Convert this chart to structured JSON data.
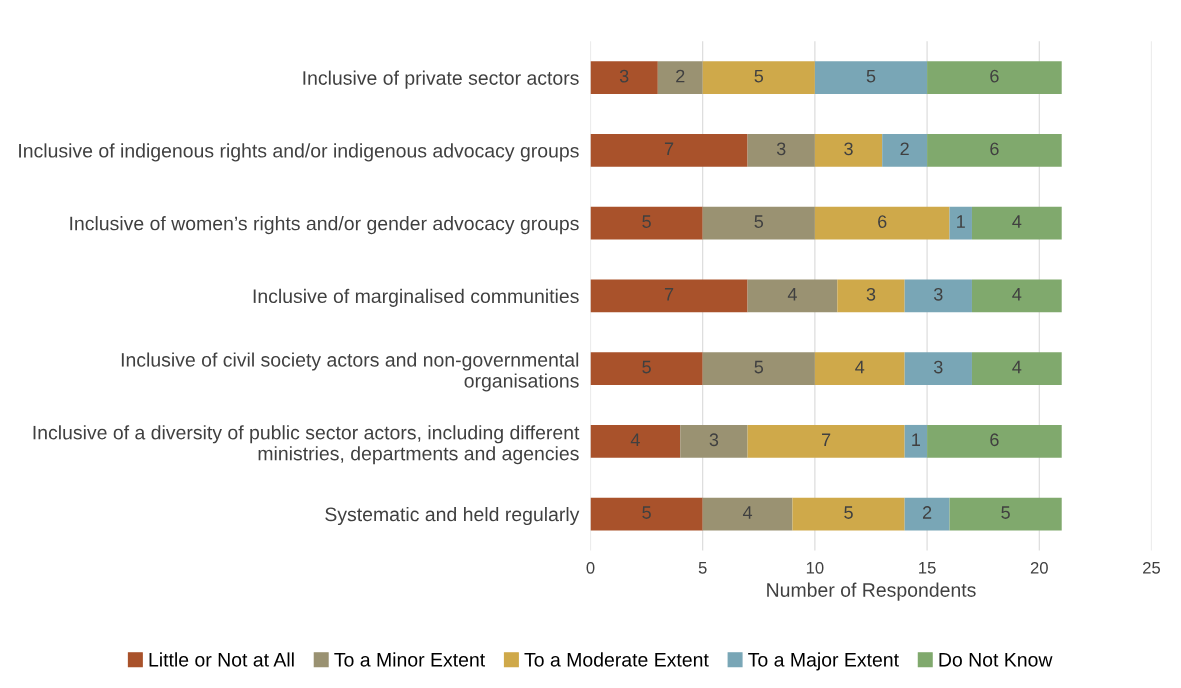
{
  "chart_data": {
    "type": "bar",
    "orientation": "horizontal",
    "stacked": true,
    "xlabel": "Number of Respondents",
    "categories": [
      "Inclusive of private sector actors",
      "Inclusive of indigenous rights and/or indigenous advocacy groups",
      "Inclusive of women’s rights and/or gender advocacy groups",
      "Inclusive of marginalised communities",
      "Inclusive of civil society actors and non-governmental organisations",
      "Inclusive of a diversity of public sector actors, including different ministries, departments and agencies",
      "Systematic and held regularly"
    ],
    "series": [
      {
        "name": "Little or Not at All",
        "color": "#a9522b",
        "values": [
          3,
          7,
          5,
          7,
          5,
          4,
          5
        ]
      },
      {
        "name": "To a Minor Extent",
        "color": "#9a9272",
        "values": [
          2,
          3,
          5,
          4,
          5,
          3,
          4
        ]
      },
      {
        "name": "To a Moderate Extent",
        "color": "#cfa94a",
        "values": [
          5,
          3,
          6,
          3,
          4,
          7,
          5
        ]
      },
      {
        "name": "To a Major Extent",
        "color": "#79a6b6",
        "values": [
          5,
          2,
          1,
          3,
          3,
          1,
          2
        ]
      },
      {
        "name": "Do Not Know",
        "color": "#80a96d",
        "values": [
          6,
          6,
          4,
          4,
          4,
          6,
          5
        ]
      }
    ],
    "xlim": [
      0,
      25
    ],
    "xticks": [
      0,
      5,
      10,
      15,
      20,
      25
    ],
    "grid": "x",
    "legend": "bottom",
    "data_labels": true
  }
}
